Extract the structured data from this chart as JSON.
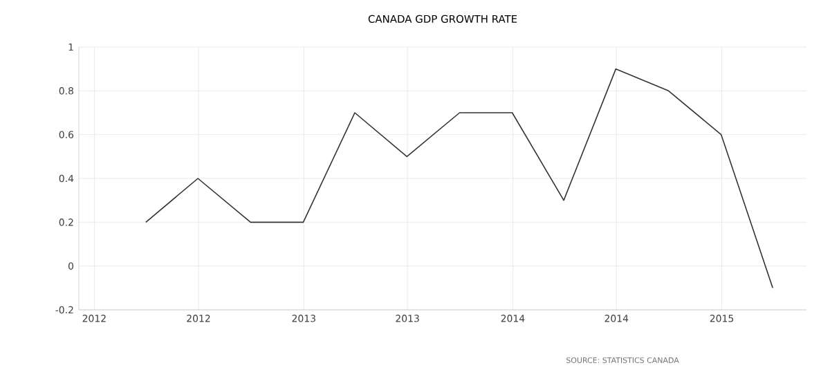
{
  "chart_data": {
    "type": "line",
    "title": "CANADA GDP GROWTH RATE",
    "x": [
      "2012-03-31",
      "2012-06-30",
      "2012-09-30",
      "2012-12-31",
      "2013-03-31",
      "2013-06-30",
      "2013-09-30",
      "2013-12-31",
      "2014-03-31",
      "2014-06-30",
      "2014-09-30",
      "2014-12-31",
      "2015-03-31"
    ],
    "values": [
      0.2,
      0.4,
      0.2,
      0.2,
      0.7,
      0.5,
      0.7,
      0.7,
      0.3,
      0.9,
      0.8,
      0.6,
      -0.1
    ],
    "color": "#333333",
    "xlim": [
      "2011-12-05",
      "2015-05-29"
    ],
    "xticks": [
      {
        "value": "2012-01-01",
        "label": "2012"
      },
      {
        "value": "2012-07-01",
        "label": "2012"
      },
      {
        "value": "2013-01-01",
        "label": "2013"
      },
      {
        "value": "2013-07-01",
        "label": "2013"
      },
      {
        "value": "2014-01-01",
        "label": "2014"
      },
      {
        "value": "2014-07-01",
        "label": "2014"
      },
      {
        "value": "2015-01-01",
        "label": "2015"
      }
    ],
    "ylim": [
      -0.2,
      1
    ],
    "yticks": [
      -0.2,
      0,
      0.2,
      0.4,
      0.6,
      0.8,
      1
    ],
    "grid": true,
    "marker": "none",
    "line_style": "solid",
    "annotations": [
      "SOURCE: STATISTICS CANADA"
    ]
  }
}
